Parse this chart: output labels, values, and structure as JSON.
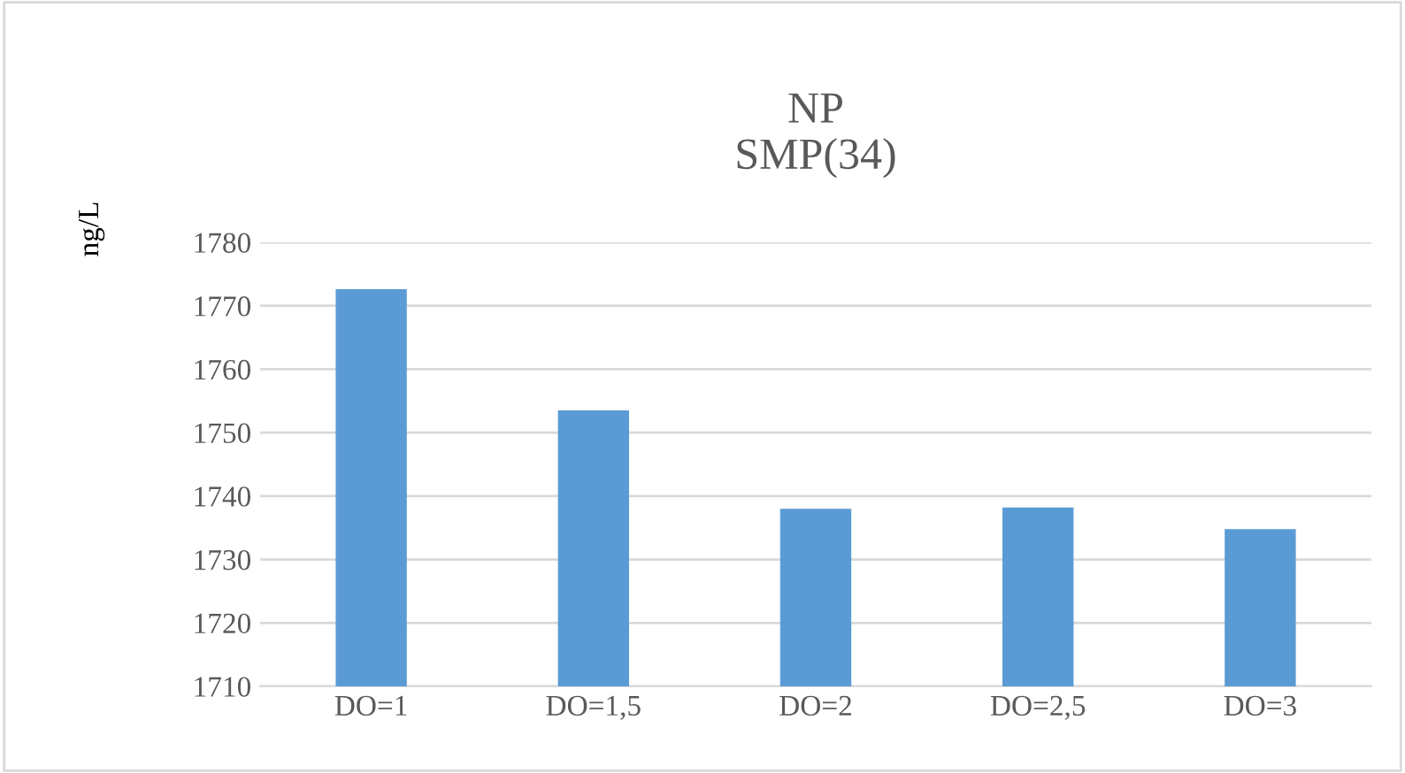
{
  "chart_data": {
    "type": "bar",
    "title": "NP\nSMP(34)",
    "ylabel": "ng/L",
    "categories": [
      "DO=1",
      "DO=1,5",
      "DO=2",
      "DO=2,5",
      "DO=3"
    ],
    "values": [
      1772.6,
      1753.5,
      1738,
      1738.2,
      1734.8
    ],
    "color": "#5b9bd5",
    "ylim": [
      1710,
      1780
    ],
    "yticks": [
      1710,
      1720,
      1730,
      1740,
      1750,
      1760,
      1770,
      1780
    ],
    "grid": "y",
    "legend": false
  }
}
